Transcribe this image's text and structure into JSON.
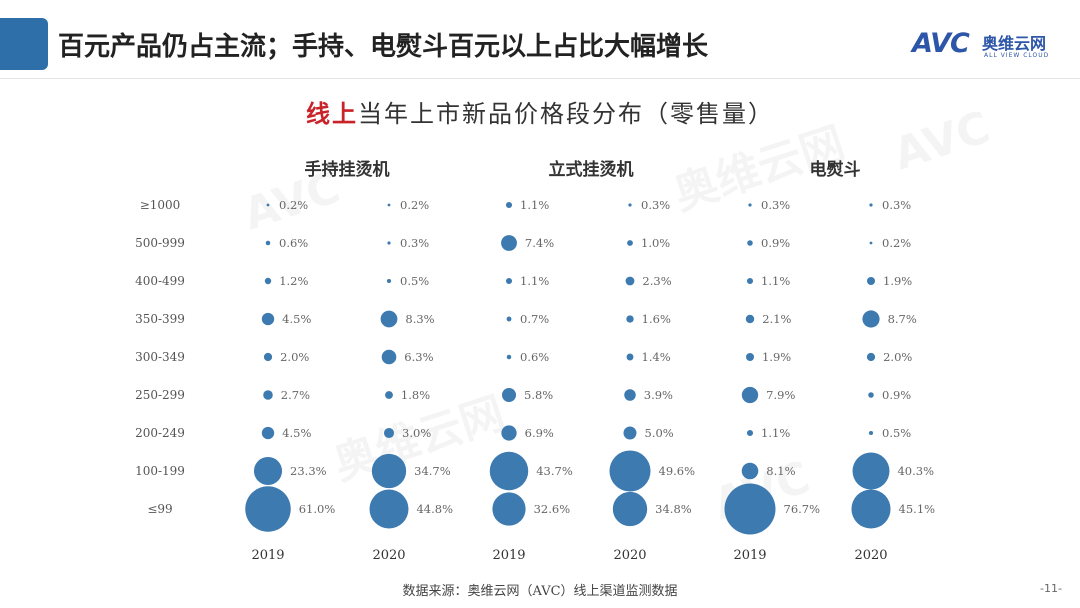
{
  "header": {
    "title": "百元产品仍占主流；手持、电熨斗百元以上占比大幅增长",
    "accent_color": "#2e6faa"
  },
  "logo": {
    "mark": "AVC",
    "cn": "奥维云网",
    "en": "ALL VIEW CLOUD",
    "color": "#2d56a8"
  },
  "chart_title": {
    "highlight": "线上",
    "rest": "当年上市新品价格段分布（零售量）",
    "highlight_color": "#c9232a"
  },
  "watermark": {
    "cn": "奥维云网",
    "mark": "AVC",
    "en": "ALL VIEW CLOUD"
  },
  "chart_data": {
    "type": "bubble",
    "title": "线上当年上市新品价格段分布（零售量）",
    "unit": "%",
    "bubble_color": "#3d7ab0",
    "price_bands": [
      "≥1000",
      "500-999",
      "400-499",
      "350-399",
      "300-349",
      "250-299",
      "200-249",
      "100-199",
      "≤99"
    ],
    "groups": [
      {
        "name": "手持挂烫机",
        "series": [
          {
            "year": "2019",
            "values": [
              0.2,
              0.6,
              1.2,
              4.5,
              2.0,
              2.7,
              4.5,
              23.3,
              61.0
            ]
          },
          {
            "year": "2020",
            "values": [
              0.2,
              0.3,
              0.5,
              8.3,
              6.3,
              1.8,
              3.0,
              34.7,
              44.8
            ]
          }
        ]
      },
      {
        "name": "立式挂烫机",
        "series": [
          {
            "year": "2019",
            "values": [
              1.1,
              7.4,
              1.1,
              0.7,
              0.6,
              5.8,
              6.9,
              43.7,
              32.6
            ]
          },
          {
            "year": "2020",
            "values": [
              0.3,
              1.0,
              2.3,
              1.6,
              1.4,
              3.9,
              5.0,
              49.6,
              34.8
            ]
          }
        ]
      },
      {
        "name": "电熨斗",
        "series": [
          {
            "year": "2019",
            "values": [
              0.3,
              0.9,
              1.1,
              2.1,
              1.9,
              7.9,
              1.1,
              8.1,
              76.7
            ]
          },
          {
            "year": "2020",
            "values": [
              0.3,
              0.2,
              1.9,
              8.7,
              2.0,
              0.9,
              0.5,
              40.3,
              45.1
            ]
          }
        ]
      }
    ]
  },
  "footer": {
    "source": "数据来源：奥维云网（AVC）线上渠道监测数据",
    "page": "-11-"
  }
}
